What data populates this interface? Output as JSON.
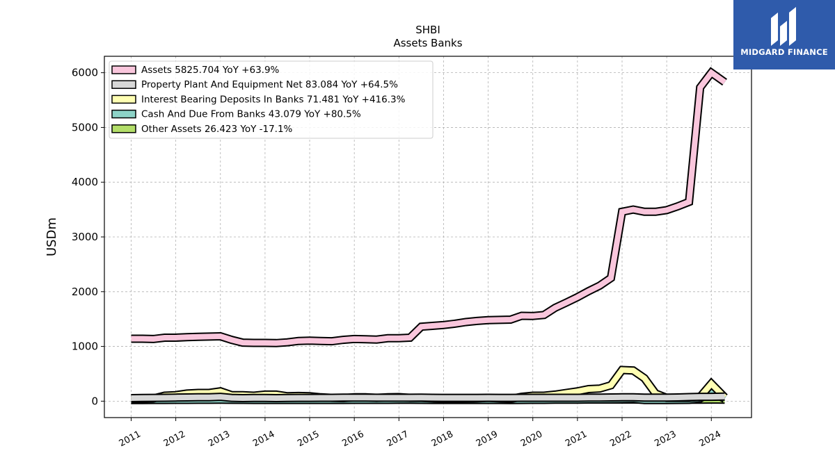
{
  "chart_data": {
    "type": "area",
    "title": "SHBI",
    "subtitle": "Assets Banks",
    "ylabel": "USDm",
    "xlabel": "",
    "ylim": [
      -300,
      6300
    ],
    "xlim": [
      2010.4,
      2024.9
    ],
    "yticks": [
      0,
      1000,
      2000,
      3000,
      4000,
      5000,
      6000
    ],
    "xticks": [
      "2011",
      "2012",
      "2013",
      "2014",
      "2015",
      "2016",
      "2017",
      "2018",
      "2019",
      "2020",
      "2021",
      "2022",
      "2023",
      "2024"
    ],
    "grid": true,
    "legend_position": "top-left",
    "x": [
      2011.0,
      2011.25,
      2011.5,
      2011.75,
      2012.0,
      2012.25,
      2012.5,
      2012.75,
      2013.0,
      2013.25,
      2013.5,
      2013.75,
      2014.0,
      2014.25,
      2014.5,
      2014.75,
      2015.0,
      2015.25,
      2015.5,
      2015.75,
      2016.0,
      2016.25,
      2016.5,
      2016.75,
      2017.0,
      2017.25,
      2017.5,
      2017.75,
      2018.0,
      2018.25,
      2018.5,
      2018.75,
      2019.0,
      2019.25,
      2019.5,
      2019.75,
      2020.0,
      2020.25,
      2020.5,
      2020.75,
      2021.0,
      2021.25,
      2021.5,
      2021.75,
      2022.0,
      2022.25,
      2022.5,
      2022.75,
      2023.0,
      2023.25,
      2023.5,
      2023.75,
      2024.0,
      2024.3
    ],
    "series": [
      {
        "name": "Assets",
        "legend": "Assets  5825.704 YoY +63.9%",
        "color": "#f9c6dc",
        "values": [
          1140,
          1140,
          1135,
          1160,
          1160,
          1170,
          1175,
          1180,
          1185,
          1120,
          1070,
          1065,
          1065,
          1060,
          1075,
          1100,
          1105,
          1100,
          1095,
          1120,
          1135,
          1130,
          1125,
          1150,
          1150,
          1160,
          1360,
          1375,
          1390,
          1415,
          1445,
          1465,
          1480,
          1485,
          1490,
          1560,
          1555,
          1575,
          1705,
          1800,
          1900,
          2010,
          2110,
          2250,
          3460,
          3500,
          3460,
          3460,
          3490,
          3560,
          3640,
          5730,
          6000,
          5826
        ]
      },
      {
        "name": "Property Plant And Equipment Net",
        "legend": "Property Plant And Equipment Net  83.084 YoY +64.5%",
        "color": "#d7d7d7",
        "values": [
          55,
          58,
          60,
          62,
          65,
          68,
          70,
          72,
          80,
          60,
          55,
          58,
          58,
          56,
          58,
          60,
          60,
          62,
          62,
          64,
          65,
          65,
          63,
          63,
          63,
          63,
          64,
          62,
          60,
          60,
          60,
          60,
          62,
          60,
          60,
          62,
          62,
          62,
          62,
          62,
          62,
          64,
          65,
          68,
          70,
          72,
          65,
          65,
          65,
          68,
          75,
          80,
          80,
          83
        ]
      },
      {
        "name": "Interest Bearing Deposits In Banks",
        "legend": "Interest Bearing Deposits In Banks  71.481 YoY +416.3%",
        "color": "#ffffb3",
        "values": [
          30,
          40,
          50,
          100,
          110,
          140,
          150,
          150,
          180,
          110,
          110,
          100,
          120,
          120,
          90,
          95,
          90,
          70,
          60,
          55,
          70,
          70,
          60,
          70,
          75,
          60,
          60,
          50,
          40,
          40,
          45,
          50,
          60,
          50,
          40,
          80,
          100,
          100,
          120,
          150,
          180,
          220,
          230,
          290,
          570,
          560,
          420,
          140,
          60,
          60,
          60,
          80,
          320,
          71
        ]
      },
      {
        "name": "Cash And Due From Banks",
        "legend": "Cash And Due From Banks  43.079 YoY +80.5%",
        "color": "#8dd3c7",
        "values": [
          20,
          20,
          22,
          22,
          24,
          24,
          25,
          25,
          26,
          25,
          24,
          22,
          22,
          22,
          22,
          22,
          22,
          22,
          22,
          22,
          24,
          24,
          24,
          24,
          26,
          26,
          24,
          22,
          22,
          22,
          22,
          22,
          22,
          22,
          20,
          22,
          24,
          24,
          26,
          26,
          28,
          30,
          30,
          32,
          36,
          40,
          20,
          20,
          20,
          22,
          24,
          50,
          170,
          43
        ]
      },
      {
        "name": "Other Assets",
        "legend": "Other Assets  26.423 YoY -17.1%",
        "color": "#b3de69",
        "values": [
          30,
          30,
          28,
          28,
          28,
          30,
          30,
          30,
          30,
          28,
          28,
          28,
          28,
          28,
          28,
          28,
          28,
          28,
          28,
          28,
          28,
          28,
          28,
          28,
          28,
          28,
          28,
          28,
          28,
          28,
          28,
          28,
          28,
          28,
          28,
          30,
          30,
          30,
          30,
          30,
          30,
          30,
          30,
          30,
          30,
          30,
          28,
          30,
          30,
          30,
          28,
          28,
          30,
          26
        ]
      }
    ]
  },
  "logo": {
    "name": "MIDGARD FINANCE",
    "color": "#2f5bab"
  }
}
